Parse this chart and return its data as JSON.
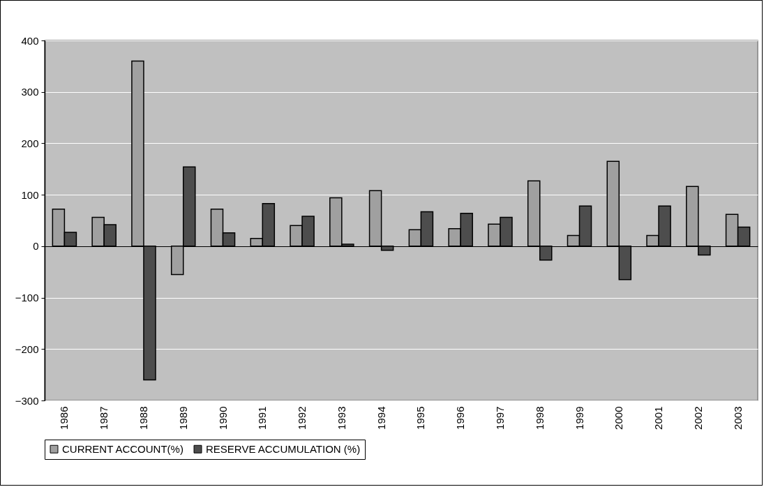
{
  "chart_data": {
    "type": "bar",
    "categories": [
      "1986",
      "1987",
      "1988",
      "1989",
      "1990",
      "1991",
      "1992",
      "1993",
      "1994",
      "1995",
      "1996",
      "1997",
      "1998",
      "1999",
      "2000",
      "2001",
      "2002",
      "2003"
    ],
    "series": [
      {
        "name": "CURRENT ACCOUNT(%)",
        "color": "#a0a0a0",
        "values": [
          72,
          56,
          360,
          -55,
          72,
          15,
          40,
          94,
          108,
          32,
          34,
          43,
          127,
          21,
          165,
          21,
          116,
          62
        ]
      },
      {
        "name": "RESERVE ACCUMULATION (%)",
        "color": "#4d4d4d",
        "values": [
          27,
          42,
          -260,
          154,
          26,
          83,
          58,
          4,
          -8,
          67,
          64,
          56,
          -27,
          78,
          -65,
          78,
          -17,
          37
        ]
      }
    ],
    "ylim": [
      -300,
      400
    ],
    "yticks": [
      -300,
      -200,
      -100,
      0,
      100,
      200,
      300,
      400
    ],
    "grid": "y",
    "legend": "bottom"
  }
}
